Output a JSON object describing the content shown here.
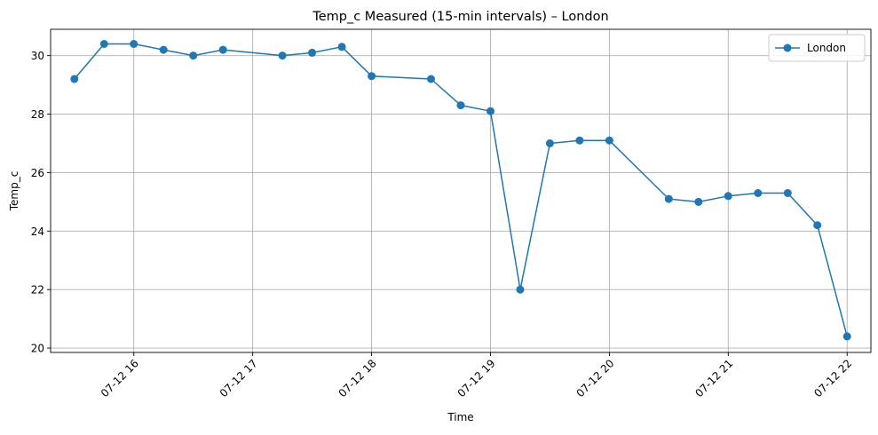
{
  "chart_data": {
    "type": "line",
    "title": "Temp_c Measured (15-min intervals) – London",
    "xlabel": "Time",
    "ylabel": "Temp_c",
    "x_range": [
      "07-12 15:18",
      "07-12 22:12"
    ],
    "ylim": [
      19.85,
      30.9
    ],
    "x_ticks": [
      "07-12 16",
      "07-12 17",
      "07-12 18",
      "07-12 19",
      "07-12 20",
      "07-12 21",
      "07-12 22"
    ],
    "y_ticks": [
      "20",
      "22",
      "24",
      "26",
      "28",
      "30"
    ],
    "grid": true,
    "legend_position": "top-right",
    "series": [
      {
        "name": "London",
        "color": "#1f77b4",
        "marker": "circle",
        "points": [
          {
            "x": "07-12 15:30",
            "y": 29.2
          },
          {
            "x": "07-12 15:45",
            "y": 30.4
          },
          {
            "x": "07-12 16:00",
            "y": 30.4
          },
          {
            "x": "07-12 16:15",
            "y": 30.2
          },
          {
            "x": "07-12 16:30",
            "y": 30.0
          },
          {
            "x": "07-12 16:45",
            "y": 30.2
          },
          {
            "x": "07-12 17:15",
            "y": 30.0
          },
          {
            "x": "07-12 17:30",
            "y": 30.1
          },
          {
            "x": "07-12 17:45",
            "y": 30.3
          },
          {
            "x": "07-12 18:00",
            "y": 29.3
          },
          {
            "x": "07-12 18:30",
            "y": 29.2
          },
          {
            "x": "07-12 18:45",
            "y": 28.3
          },
          {
            "x": "07-12 19:00",
            "y": 28.1
          },
          {
            "x": "07-12 19:15",
            "y": 22.0
          },
          {
            "x": "07-12 19:30",
            "y": 27.0
          },
          {
            "x": "07-12 19:45",
            "y": 27.1
          },
          {
            "x": "07-12 20:00",
            "y": 27.1
          },
          {
            "x": "07-12 20:30",
            "y": 25.1
          },
          {
            "x": "07-12 20:45",
            "y": 25.0
          },
          {
            "x": "07-12 21:00",
            "y": 25.2
          },
          {
            "x": "07-12 21:15",
            "y": 25.3
          },
          {
            "x": "07-12 21:30",
            "y": 25.3
          },
          {
            "x": "07-12 21:45",
            "y": 24.2
          },
          {
            "x": "07-12 22:00",
            "y": 20.4
          }
        ]
      }
    ]
  }
}
